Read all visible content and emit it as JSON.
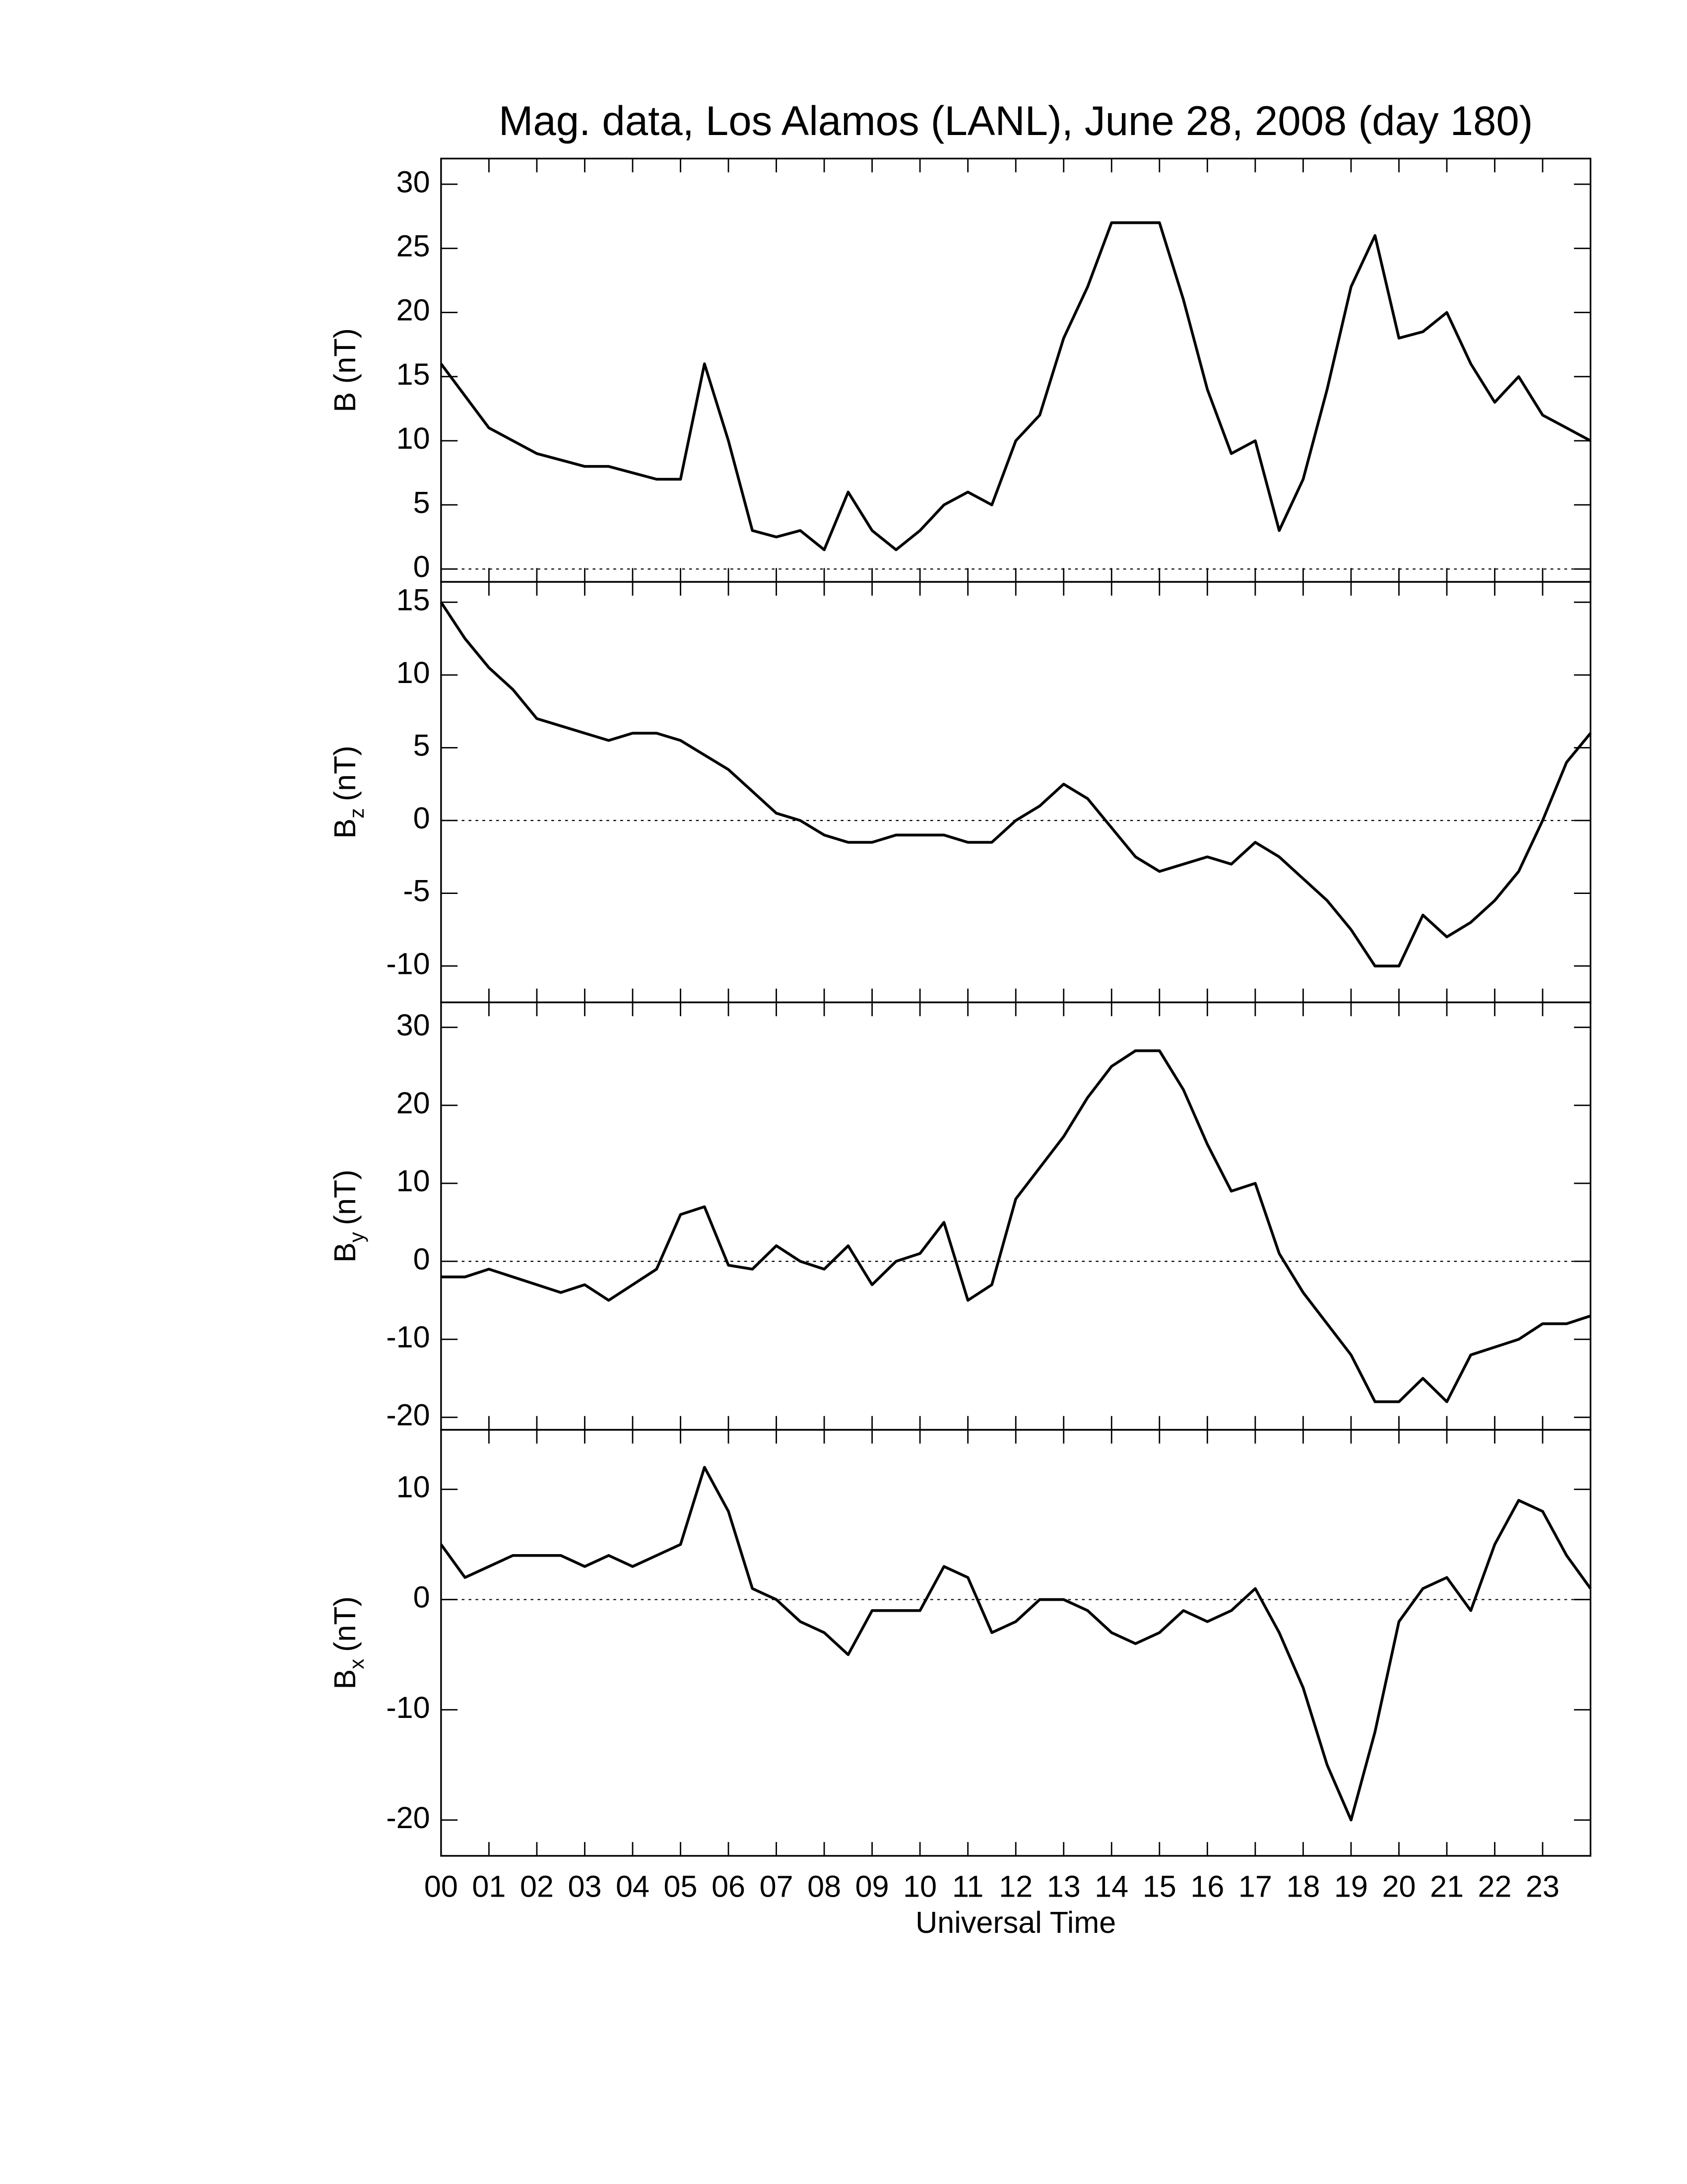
{
  "chart_data": [
    {
      "type": "line",
      "title": "Mag. data, Los Alamos (LANL), June 28, 2008 (day 180)",
      "y_label": {
        "main": "B",
        "unit": "(nT)"
      },
      "x": [
        0,
        0.5,
        1,
        1.5,
        2,
        2.5,
        3,
        3.5,
        4,
        4.5,
        5,
        5.5,
        6,
        6.5,
        7,
        7.5,
        8,
        8.5,
        9,
        9.5,
        10,
        10.5,
        11,
        11.5,
        12,
        12.5,
        13,
        13.5,
        14,
        14.5,
        15,
        15.5,
        16,
        16.5,
        17,
        17.5,
        18,
        18.5,
        19,
        19.5,
        20,
        20.5,
        21,
        21.5,
        22,
        22.5,
        23,
        23.5,
        24
      ],
      "values": [
        16,
        13.5,
        11,
        10,
        9,
        8.5,
        8,
        8,
        7.5,
        7,
        7,
        16,
        10,
        3,
        2.5,
        3,
        1.5,
        6,
        3,
        1.5,
        3,
        5,
        6,
        5,
        10,
        12,
        18,
        22,
        27,
        27,
        27,
        21,
        14,
        9,
        10,
        3,
        7,
        14,
        22,
        26,
        18,
        18.5,
        20,
        16,
        13,
        15,
        12,
        11,
        10
      ],
      "color": "#000000",
      "xlim": [
        0,
        24
      ],
      "ylim": [
        -1,
        32
      ],
      "yticks": [
        0,
        5,
        10,
        15,
        20,
        25,
        30
      ],
      "zero_line": true
    },
    {
      "type": "line",
      "y_label": {
        "main": "B",
        "sub": "z",
        "unit": "(nT)"
      },
      "x": [
        0,
        0.5,
        1,
        1.5,
        2,
        2.5,
        3,
        3.5,
        4,
        4.5,
        5,
        5.5,
        6,
        6.5,
        7,
        7.5,
        8,
        8.5,
        9,
        9.5,
        10,
        10.5,
        11,
        11.5,
        12,
        12.5,
        13,
        13.5,
        14,
        14.5,
        15,
        15.5,
        16,
        16.5,
        17,
        17.5,
        18,
        18.5,
        19,
        19.5,
        20,
        20.5,
        21,
        21.5,
        22,
        22.5,
        23,
        23.5,
        24
      ],
      "values": [
        15,
        12.5,
        10.5,
        9,
        7,
        6.5,
        6,
        5.5,
        6,
        6,
        5.5,
        4.5,
        3.5,
        2,
        0.5,
        0,
        -1,
        -1.5,
        -1.5,
        -1,
        -1,
        -1,
        -1.5,
        -1.5,
        0,
        1,
        2.5,
        1.5,
        -0.5,
        -2.5,
        -3.5,
        -3,
        -2.5,
        -3,
        -1.5,
        -2.5,
        -4,
        -5.5,
        -7.5,
        -10,
        -10,
        -6.5,
        -8,
        -7,
        -5.5,
        -3.5,
        0,
        4,
        6
      ],
      "color": "#000000",
      "xlim": [
        0,
        24
      ],
      "ylim": [
        -12.5,
        16.4
      ],
      "yticks": [
        -10,
        -5,
        0,
        5,
        10,
        15
      ],
      "zero_line": true
    },
    {
      "type": "line",
      "y_label": {
        "main": "B",
        "sub": "y",
        "unit": "(nT)"
      },
      "x": [
        0,
        0.5,
        1,
        1.5,
        2,
        2.5,
        3,
        3.5,
        4,
        4.5,
        5,
        5.5,
        6,
        6.5,
        7,
        7.5,
        8,
        8.5,
        9,
        9.5,
        10,
        10.5,
        11,
        11.5,
        12,
        12.5,
        13,
        13.5,
        14,
        14.5,
        15,
        15.5,
        16,
        16.5,
        17,
        17.5,
        18,
        18.5,
        19,
        19.5,
        20,
        20.5,
        21,
        21.5,
        22,
        22.5,
        23,
        23.5,
        24
      ],
      "values": [
        -2,
        -2,
        -1,
        -2,
        -3,
        -4,
        -3,
        -5,
        -3,
        -1,
        6,
        7,
        -0.5,
        -1,
        2,
        0,
        -1,
        2,
        -3,
        0,
        1,
        5,
        -5,
        -3,
        8,
        12,
        16,
        21,
        25,
        27,
        27,
        22,
        15,
        9,
        10,
        1,
        -4,
        -8,
        -12,
        -18,
        -18,
        -15,
        -18,
        -12,
        -11,
        -10,
        -8,
        -8,
        -7
      ],
      "color": "#000000",
      "xlim": [
        0,
        24
      ],
      "ylim": [
        -21.6,
        33.2
      ],
      "yticks": [
        -20,
        -10,
        0,
        10,
        20,
        30
      ],
      "zero_line": true
    },
    {
      "type": "line",
      "y_label": {
        "main": "B",
        "sub": "x",
        "unit": "(nT)"
      },
      "x_label": "Universal Time",
      "x": [
        0,
        0.5,
        1,
        1.5,
        2,
        2.5,
        3,
        3.5,
        4,
        4.5,
        5,
        5.5,
        6,
        6.5,
        7,
        7.5,
        8,
        8.5,
        9,
        9.5,
        10,
        10.5,
        11,
        11.5,
        12,
        12.5,
        13,
        13.5,
        14,
        14.5,
        15,
        15.5,
        16,
        16.5,
        17,
        17.5,
        18,
        18.5,
        19,
        19.5,
        20,
        20.5,
        21,
        21.5,
        22,
        22.5,
        23,
        23.5,
        24
      ],
      "values": [
        5,
        2,
        3,
        4,
        4,
        4,
        3,
        4,
        3,
        4,
        5,
        12,
        8,
        1,
        0,
        -2,
        -3,
        -5,
        -1,
        -1,
        -1,
        3,
        2,
        -3,
        -2,
        0,
        0,
        -1,
        -3,
        -4,
        -3,
        -1,
        -2,
        -1,
        1,
        -3,
        -8,
        -15,
        -20,
        -12,
        -2,
        1,
        2,
        -1,
        5,
        9,
        8,
        4,
        1
      ],
      "color": "#000000",
      "xlim": [
        0,
        24
      ],
      "ylim": [
        -23.25,
        15.4
      ],
      "yticks": [
        -20,
        -10,
        0,
        10
      ],
      "zero_line": true,
      "xticks": [
        {
          "value": 0,
          "label": "00"
        },
        {
          "value": 1,
          "label": "01"
        },
        {
          "value": 2,
          "label": "02"
        },
        {
          "value": 3,
          "label": "03"
        },
        {
          "value": 4,
          "label": "04"
        },
        {
          "value": 5,
          "label": "05"
        },
        {
          "value": 6,
          "label": "06"
        },
        {
          "value": 7,
          "label": "07"
        },
        {
          "value": 8,
          "label": "08"
        },
        {
          "value": 9,
          "label": "09"
        },
        {
          "value": 10,
          "label": "10"
        },
        {
          "value": 11,
          "label": "11"
        },
        {
          "value": 12,
          "label": "12"
        },
        {
          "value": 13,
          "label": "13"
        },
        {
          "value": 14,
          "label": "14"
        },
        {
          "value": 15,
          "label": "15"
        },
        {
          "value": 16,
          "label": "16"
        },
        {
          "value": 17,
          "label": "17"
        },
        {
          "value": 18,
          "label": "18"
        },
        {
          "value": 19,
          "label": "19"
        },
        {
          "value": 20,
          "label": "20"
        },
        {
          "value": 21,
          "label": "21"
        },
        {
          "value": 22,
          "label": "22"
        },
        {
          "value": 23,
          "label": "23"
        }
      ]
    }
  ]
}
